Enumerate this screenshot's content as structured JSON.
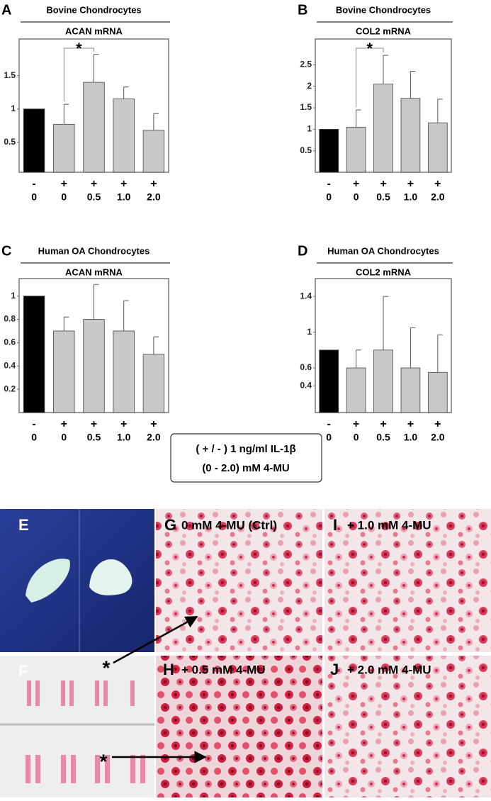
{
  "chart_data": [
    {
      "type": "bar",
      "panel": "A",
      "title": "Bovine Chondrocytes",
      "subtitle": "ACAN mRNA",
      "treatment": [
        "-",
        "+",
        "+",
        "+",
        "+"
      ],
      "categories": [
        "0",
        "0",
        "0.5",
        "1.0",
        "2.0"
      ],
      "values": [
        1.0,
        0.77,
        1.4,
        1.15,
        0.68
      ],
      "errors": [
        null,
        0.3,
        0.42,
        0.18,
        0.25
      ],
      "bar_colors": [
        "#000000",
        "#c8c8c8",
        "#c8c8c8",
        "#c8c8c8",
        "#c8c8c8"
      ],
      "ylim": [
        0.05,
        2.05
      ],
      "yticks": [
        0.5,
        1.0,
        1.5
      ],
      "significance": "*"
    },
    {
      "type": "bar",
      "panel": "B",
      "title": "Bovine Chondrocytes",
      "subtitle": "COL2 mRNA",
      "treatment": [
        "-",
        "+",
        "+",
        "+",
        "+"
      ],
      "categories": [
        "0",
        "0",
        "0.5",
        "1.0",
        "2.0"
      ],
      "values": [
        1.0,
        1.05,
        2.05,
        1.72,
        1.15
      ],
      "errors": [
        null,
        0.4,
        0.67,
        0.63,
        0.55
      ],
      "bar_colors": [
        "#000000",
        "#c8c8c8",
        "#c8c8c8",
        "#c8c8c8",
        "#c8c8c8"
      ],
      "ylim": [
        0,
        3.1
      ],
      "yticks": [
        0.5,
        1.0,
        1.5,
        2.0,
        2.5
      ],
      "significance": "*"
    },
    {
      "type": "bar",
      "panel": "C",
      "title": "Human OA Chondrocytes",
      "subtitle": "ACAN mRNA",
      "treatment": [
        "-",
        "+",
        "+",
        "+",
        "+"
      ],
      "categories": [
        "0",
        "0",
        "0.5",
        "1.0",
        "2.0"
      ],
      "values": [
        1.0,
        0.7,
        0.8,
        0.7,
        0.5
      ],
      "errors": [
        null,
        0.12,
        0.3,
        0.26,
        0.15
      ],
      "bar_colors": [
        "#000000",
        "#c8c8c8",
        "#c8c8c8",
        "#c8c8c8",
        "#c8c8c8"
      ],
      "ylim": [
        0,
        1.15
      ],
      "yticks": [
        0.2,
        0.4,
        0.6,
        0.8,
        1.0
      ]
    },
    {
      "type": "bar",
      "panel": "D",
      "title": "Human OA Chondrocytes",
      "subtitle": "COL2 mRNA",
      "treatment": [
        "-",
        "+",
        "+",
        "+",
        "+"
      ],
      "categories": [
        "0",
        "0",
        "0.5",
        "1.0",
        "2.0"
      ],
      "values": [
        0.8,
        0.6,
        0.8,
        0.6,
        0.55
      ],
      "errors": [
        null,
        0.2,
        0.6,
        0.45,
        0.42
      ],
      "bar_colors": [
        "#000000",
        "#c8c8c8",
        "#c8c8c8",
        "#c8c8c8",
        "#c8c8c8"
      ],
      "ylim": [
        0.1,
        1.6
      ],
      "yticks": [
        0.4,
        0.6,
        1.0,
        1.4
      ]
    }
  ],
  "legend_box": [
    "( + / - ) 1 ng/ml  IL-1β",
    "(0 - 2.0)  mM 4-MU"
  ],
  "image_panels": [
    {
      "label": "E"
    },
    {
      "label": "F",
      "marker": "*"
    },
    {
      "label": "G",
      "caption": "0 mM 4-MU (Ctrl)"
    },
    {
      "label": "I",
      "caption": "+ 1.0 mM 4-MU"
    },
    {
      "label": "H",
      "caption": "+ 0.5 mM 4-MU"
    },
    {
      "label": "J",
      "caption": "+ 2.0 mM 4-MU"
    }
  ]
}
